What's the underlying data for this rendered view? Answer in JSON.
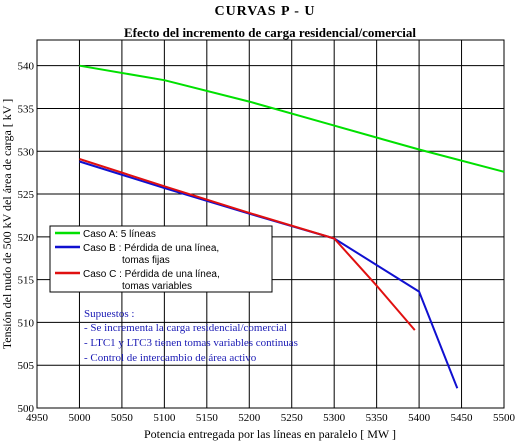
{
  "chart_data": {
    "type": "line",
    "title": "CURVAS  P - U",
    "subtitle": "Efecto del incremento de carga residencial/comercial",
    "xlabel": "Potencia entregada por las líneas en paralelo [ MW ]",
    "ylabel": "Tensión del nudo de 500 kV del área de carga [ kV ]",
    "xlim": [
      4950,
      5500
    ],
    "ylim": [
      500,
      543
    ],
    "xticks": [
      4950,
      5000,
      5050,
      5100,
      5150,
      5200,
      5250,
      5300,
      5350,
      5400,
      5450,
      5500
    ],
    "yticks": [
      500,
      505,
      510,
      515,
      520,
      525,
      530,
      535,
      540
    ],
    "grid": true,
    "legend_position": "middle-left",
    "series": [
      {
        "name": "Caso A: 5 líneas",
        "color": "#00e000",
        "x": [
          5000,
          5100,
          5200,
          5300,
          5400,
          5500
        ],
        "y": [
          540.0,
          538.3,
          535.8,
          533.0,
          530.2,
          527.6
        ]
      },
      {
        "name": "Caso B: Pérdida de una línea, tomas fijas",
        "legend_lines": [
          "Caso B : Pérdida de una línea,",
          "tomas fijas"
        ],
        "color": "#1010d0",
        "x": [
          5000,
          5100,
          5200,
          5300,
          5400,
          5445
        ],
        "y": [
          528.8,
          525.7,
          522.7,
          519.8,
          513.6,
          502.3
        ]
      },
      {
        "name": "Caso C: Pérdida de una línea, tomas variables",
        "legend_lines": [
          "Caso C : Pérdida de una línea,",
          "tomas variables"
        ],
        "color": "#e01010",
        "x": [
          5000,
          5100,
          5200,
          5300,
          5350,
          5395
        ],
        "y": [
          529.1,
          525.9,
          522.8,
          519.8,
          514.3,
          509.1
        ]
      }
    ],
    "legend_label_A": "Caso A:  5 líneas",
    "annotations": [
      "Supuestos :",
      "- Se incrementa la carga residencial/comercial",
      "- LTC1 y LTC3 tienen tomas variables continuas",
      "- Control de intercambio de área activo"
    ]
  }
}
